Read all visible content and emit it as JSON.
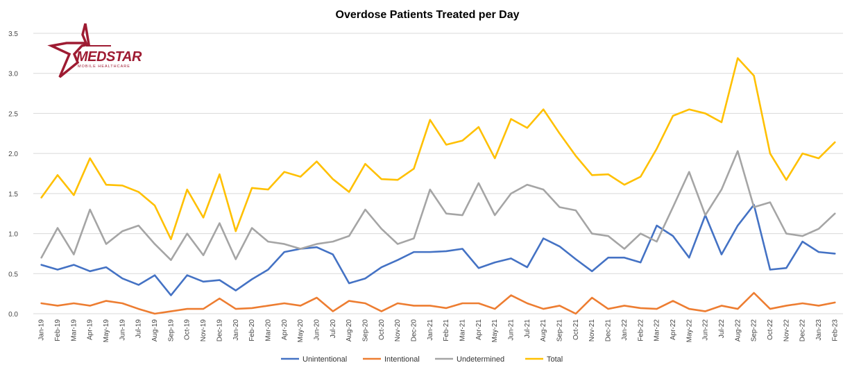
{
  "chart_data": {
    "type": "line",
    "title": "Overdose Patients Treated per Day",
    "xlabel": "",
    "ylabel": "",
    "ylim": [
      0,
      3.5
    ],
    "yticks": [
      "0.0",
      "0.5",
      "1.0",
      "1.5",
      "2.0",
      "2.5",
      "3.0",
      "3.5"
    ],
    "grid": true,
    "legend": "bottom",
    "categories": [
      "Jan-19",
      "Feb-19",
      "Mar-19",
      "Apr-19",
      "May-19",
      "Jun-19",
      "Jul-19",
      "Aug-19",
      "Sep-19",
      "Oct-19",
      "Nov-19",
      "Dec-19",
      "Jan-20",
      "Feb-20",
      "Mar-20",
      "Apr-20",
      "May-20",
      "Jun-20",
      "Jul-20",
      "Aug-20",
      "Sep-20",
      "Oct-20",
      "Nov-20",
      "Dec-20",
      "Jan-21",
      "Feb-21",
      "Mar-21",
      "Apr-21",
      "May-21",
      "Jun-21",
      "Jul-21",
      "Aug-21",
      "Sep-21",
      "Oct-21",
      "Nov-21",
      "Dec-21",
      "Jan-22",
      "Feb-22",
      "Mar-22",
      "Apr-22",
      "May-22",
      "Jun-22",
      "Jul-22",
      "Aug-22",
      "Sep-22",
      "Oct-22",
      "Nov-22",
      "Dec-22",
      "Jan-23",
      "Feb-23"
    ],
    "series": [
      {
        "name": "Unintentional",
        "color": "#4472c4",
        "values": [
          0.61,
          0.55,
          0.61,
          0.53,
          0.58,
          0.44,
          0.36,
          0.48,
          0.23,
          0.48,
          0.4,
          0.42,
          0.29,
          0.43,
          0.55,
          0.77,
          0.81,
          0.83,
          0.74,
          0.38,
          0.44,
          0.58,
          0.67,
          0.77,
          0.77,
          0.78,
          0.81,
          0.57,
          0.64,
          0.69,
          0.58,
          0.94,
          0.84,
          0.68,
          0.53,
          0.7,
          0.7,
          0.64,
          1.1,
          0.97,
          0.7,
          1.23,
          0.74,
          1.1,
          1.36,
          0.55,
          0.57,
          0.9,
          0.77,
          0.75
        ]
      },
      {
        "name": "Intentional",
        "color": "#ed7d31",
        "values": [
          0.13,
          0.1,
          0.13,
          0.1,
          0.16,
          0.13,
          0.06,
          0.0,
          0.03,
          0.06,
          0.06,
          0.19,
          0.06,
          0.07,
          0.1,
          0.13,
          0.1,
          0.2,
          0.03,
          0.16,
          0.13,
          0.03,
          0.13,
          0.1,
          0.1,
          0.07,
          0.13,
          0.13,
          0.06,
          0.23,
          0.13,
          0.06,
          0.1,
          0.0,
          0.2,
          0.06,
          0.1,
          0.07,
          0.06,
          0.16,
          0.06,
          0.03,
          0.1,
          0.06,
          0.26,
          0.06,
          0.1,
          0.13,
          0.1,
          0.14
        ]
      },
      {
        "name": "Undetermined",
        "color": "#a5a5a5",
        "values": [
          0.7,
          1.07,
          0.74,
          1.3,
          0.87,
          1.03,
          1.1,
          0.87,
          0.67,
          1.0,
          0.73,
          1.13,
          0.68,
          1.07,
          0.9,
          0.87,
          0.81,
          0.87,
          0.9,
          0.97,
          1.3,
          1.06,
          0.87,
          0.94,
          1.55,
          1.25,
          1.23,
          1.63,
          1.23,
          1.5,
          1.61,
          1.55,
          1.33,
          1.29,
          1.0,
          0.97,
          0.81,
          1.0,
          0.9,
          1.33,
          1.77,
          1.23,
          1.55,
          2.03,
          1.33,
          1.39,
          1.0,
          0.97,
          1.06,
          1.25
        ]
      },
      {
        "name": "Total",
        "color": "#ffc000",
        "values": [
          1.45,
          1.73,
          1.48,
          1.94,
          1.61,
          1.6,
          1.52,
          1.35,
          0.93,
          1.55,
          1.2,
          1.74,
          1.03,
          1.57,
          1.55,
          1.77,
          1.71,
          1.9,
          1.68,
          1.52,
          1.87,
          1.68,
          1.67,
          1.81,
          2.42,
          2.11,
          2.16,
          2.33,
          1.94,
          2.43,
          2.32,
          2.55,
          2.25,
          1.97,
          1.73,
          1.74,
          1.61,
          1.71,
          2.06,
          2.47,
          2.55,
          2.5,
          2.39,
          3.19,
          2.97,
          2.0,
          1.67,
          2.0,
          1.94,
          2.14
        ]
      }
    ]
  },
  "logo": {
    "name": "MEDSTAR",
    "subtitle": "MOBILE HEALTHCARE",
    "color": "#9e1b32"
  }
}
